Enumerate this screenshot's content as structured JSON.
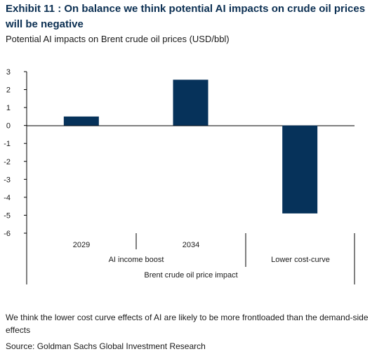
{
  "header": {
    "title": "Exhibit 11 : On balance we think potential AI impacts on crude oil prices will be negative",
    "subtitle": "Potential AI impacts on Brent crude oil prices (USD/bbl)"
  },
  "footer": {
    "note": "We think the lower cost curve effects of AI are likely to be more frontloaded than the demand-side effects",
    "source": "Source: Goldman Sachs Global Investment Research"
  },
  "chart_data": {
    "type": "bar",
    "title": "",
    "xlabel": "",
    "ylabel": "",
    "ylim": [
      -6,
      3
    ],
    "yticks": [
      "3",
      "2",
      "1",
      "0",
      "-1",
      "-2",
      "-3",
      "-4",
      "-5",
      "-6"
    ],
    "categories": [
      "2029",
      "2034",
      ""
    ],
    "groups": [
      "AI income boost",
      "Lower cost-curve"
    ],
    "supergroup": "Brent crude oil price impact",
    "values": [
      0.5,
      2.55,
      -4.9
    ],
    "grid": false,
    "color": "#06325a"
  }
}
